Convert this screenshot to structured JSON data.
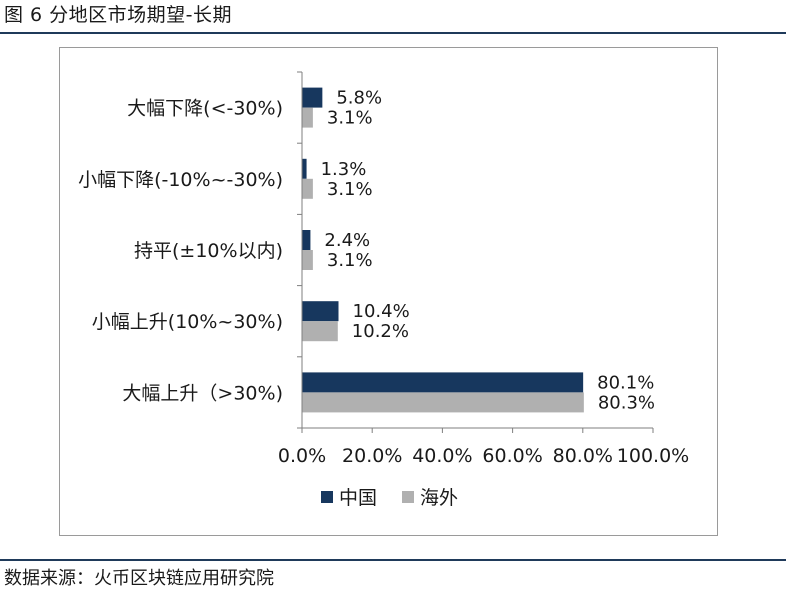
{
  "figure": {
    "title": "图 6 分地区市场期望-长期",
    "source": "数据来源：火币区块链应用研究院"
  },
  "colors": {
    "china": "#17375e",
    "overseas": "#b0b0b0",
    "rule": "#1f3a5a",
    "axis": "#7f7f7f"
  },
  "chart_data": {
    "type": "bar",
    "orientation": "horizontal",
    "categories": [
      "大幅下降(<-30%)",
      "小幅下降(-10%~-30%)",
      "持平(±10%以内)",
      "小幅上升(10%~30%)",
      "大幅上升（>30%)"
    ],
    "series": [
      {
        "name": "中国",
        "values": [
          5.8,
          1.3,
          2.4,
          10.4,
          80.1
        ],
        "labels": [
          "5.8%",
          "1.3%",
          "2.4%",
          "10.4%",
          "80.1%"
        ]
      },
      {
        "name": "海外",
        "values": [
          3.1,
          3.1,
          3.1,
          10.2,
          80.3
        ],
        "labels": [
          "3.1%",
          "3.1%",
          "3.1%",
          "10.2%",
          "80.3%"
        ]
      }
    ],
    "xlim": [
      0,
      100
    ],
    "ticks": [
      0,
      20,
      40,
      60,
      80,
      100
    ],
    "tick_labels": [
      "0.0%",
      "20.0%",
      "40.0%",
      "60.0%",
      "80.0%",
      "100.0%"
    ],
    "grid": false,
    "legend_position": "bottom"
  }
}
